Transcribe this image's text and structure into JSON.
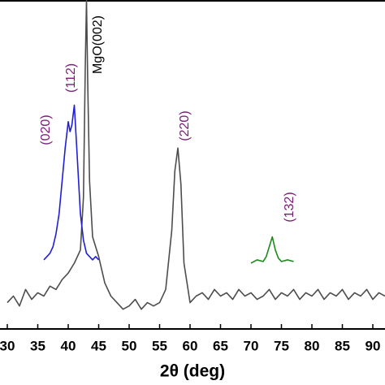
{
  "chart_data": {
    "type": "line",
    "x_label": "2θ (deg)",
    "xlim": [
      28.8,
      92
    ],
    "xticks": [
      30,
      35,
      40,
      45,
      50,
      55,
      60,
      65,
      70,
      75,
      80,
      85,
      90
    ],
    "ylim": [
      0,
      100
    ],
    "series": [
      {
        "color": "#4d4d4d",
        "x": [
          30,
          31,
          32,
          33,
          34,
          35,
          36,
          37,
          38,
          39,
          40,
          41,
          42,
          42.5,
          42.8,
          43,
          43.2,
          43.5,
          44,
          45,
          46,
          47,
          48,
          49,
          50,
          51,
          52,
          53,
          54,
          55,
          56,
          57,
          57.5,
          58,
          58.5,
          59,
          60,
          61,
          62,
          63,
          64,
          65,
          66,
          67,
          68,
          69,
          70,
          71,
          72,
          73,
          74,
          75,
          76,
          77,
          78,
          79,
          80,
          81,
          82,
          83,
          84,
          85,
          86,
          87,
          88,
          89,
          90,
          91,
          92
        ],
        "values": [
          8,
          10,
          7,
          12,
          9,
          11,
          10,
          13,
          12,
          15,
          17,
          20,
          24,
          40,
          80,
          100,
          75,
          45,
          28,
          22,
          14,
          10,
          8,
          6,
          7,
          9,
          6,
          8,
          7,
          8,
          12,
          30,
          48,
          55,
          44,
          20,
          8,
          10,
          11,
          9,
          12,
          10,
          11,
          9,
          12,
          10,
          11,
          9,
          10,
          12,
          9,
          11,
          10,
          12,
          9,
          11,
          10,
          12,
          9,
          11,
          10,
          12,
          9,
          11,
          10,
          12,
          9,
          11,
          10
        ]
      },
      {
        "color": "#1f1fd6",
        "x": [
          36,
          36.5,
          37,
          37.5,
          38,
          38.5,
          39,
          39.5,
          40,
          40.3,
          40.6,
          41,
          41.4,
          42,
          42.5,
          43,
          43.5,
          44,
          44.5,
          45
        ],
        "values": [
          21,
          22,
          23,
          25,
          29,
          35,
          45,
          55,
          63,
          60,
          62,
          68,
          55,
          35,
          27,
          23,
          22,
          21,
          22,
          21
        ]
      },
      {
        "color": "#1e8a1e",
        "x": [
          70,
          71,
          72,
          72.5,
          73,
          73.5,
          74,
          74.5,
          75,
          76,
          77
        ],
        "values": [
          20,
          21,
          20.5,
          22,
          25,
          28,
          24,
          21.5,
          20.5,
          21,
          20.5
        ]
      }
    ],
    "annotations": [
      {
        "text": "(020)",
        "color": "#7a1a7a"
      },
      {
        "text": "(112)",
        "color": "#7a1a7a"
      },
      {
        "text": "MgO(002)",
        "color": "#000000"
      },
      {
        "text": "(220)",
        "color": "#7a1a7a"
      },
      {
        "text": "(132)",
        "color": "#7a1a7a"
      }
    ]
  }
}
